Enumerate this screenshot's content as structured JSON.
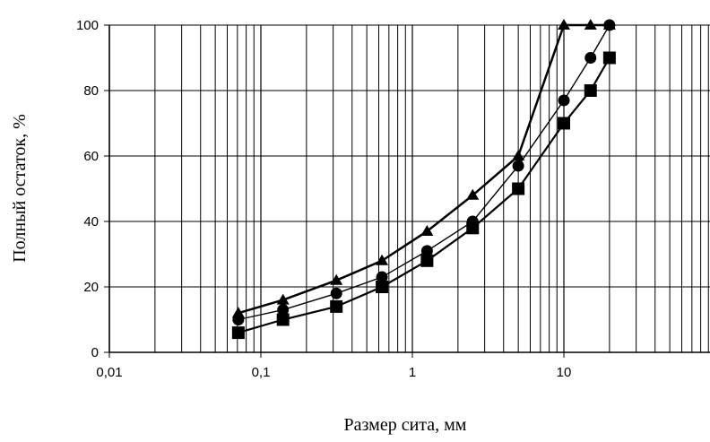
{
  "chart_data": {
    "type": "line",
    "xlabel": "Размер сита, мм",
    "ylabel": "Полный остаток, %",
    "xscale": "log",
    "xlim": [
      0.01,
      100
    ],
    "ylim": [
      0,
      100
    ],
    "xticks": [
      0.01,
      0.1,
      1,
      10
    ],
    "xtick_labels": [
      "0,01",
      "0,1",
      "1",
      "10"
    ],
    "yticks": [
      0,
      20,
      40,
      60,
      80,
      100
    ],
    "ytick_labels": [
      "0",
      "20",
      "40",
      "60",
      "80",
      "100"
    ],
    "grid": true,
    "series": [
      {
        "marker": "triangle",
        "color": "#000000",
        "points": [
          [
            0.071,
            12
          ],
          [
            0.14,
            16
          ],
          [
            0.315,
            22
          ],
          [
            0.63,
            28
          ],
          [
            1.25,
            37
          ],
          [
            2.5,
            48
          ],
          [
            5,
            60
          ],
          [
            10,
            100
          ],
          [
            15,
            100
          ],
          [
            20,
            100
          ]
        ]
      },
      {
        "marker": "circle",
        "color": "#000000",
        "points": [
          [
            0.071,
            10
          ],
          [
            0.14,
            13
          ],
          [
            0.315,
            18
          ],
          [
            0.63,
            23
          ],
          [
            1.25,
            31
          ],
          [
            2.5,
            40
          ],
          [
            5,
            57
          ],
          [
            10,
            77
          ],
          [
            15,
            90
          ],
          [
            20,
            100
          ]
        ]
      },
      {
        "marker": "square",
        "color": "#000000",
        "points": [
          [
            0.071,
            6
          ],
          [
            0.14,
            10
          ],
          [
            0.315,
            14
          ],
          [
            0.63,
            20
          ],
          [
            1.25,
            28
          ],
          [
            2.5,
            38
          ],
          [
            5,
            50
          ],
          [
            10,
            70
          ],
          [
            15,
            80
          ],
          [
            20,
            90
          ]
        ]
      }
    ]
  }
}
